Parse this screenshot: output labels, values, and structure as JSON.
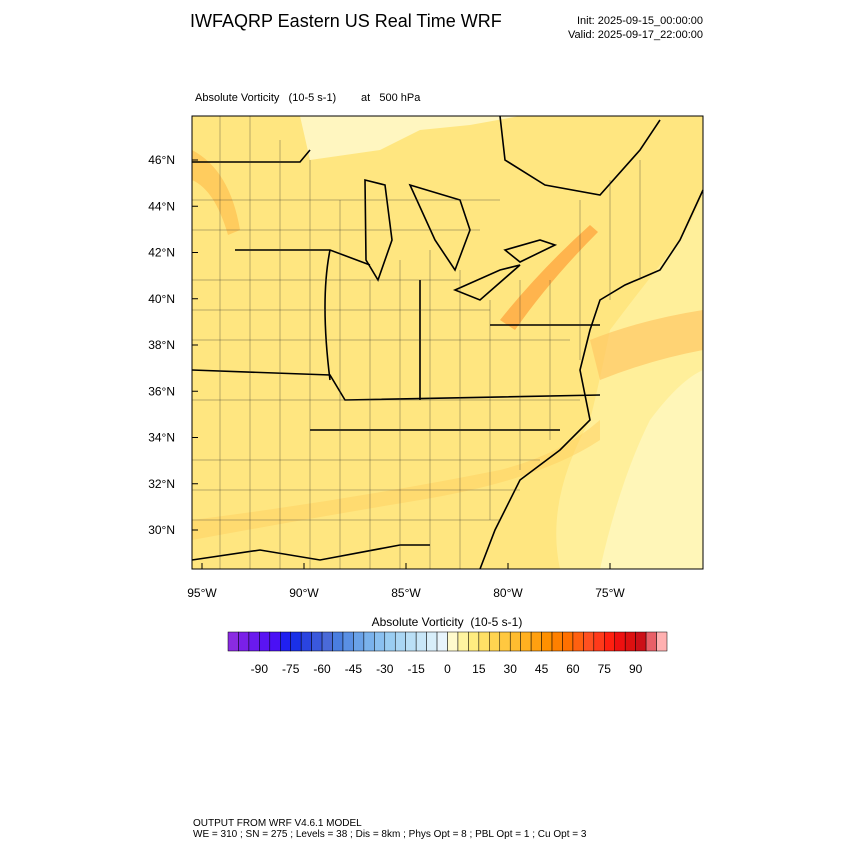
{
  "header": {
    "title": "IWFAQRP Eastern US Real Time WRF",
    "init": "Init: 2025-09-15_00:00:00",
    "valid": "Valid: 2025-09-17_22:00:00"
  },
  "field": {
    "name": "Absolute Vorticity   (10-5 s-1)",
    "level": "at   500 hPa"
  },
  "map": {
    "lat_labels": [
      "46°N",
      "44°N",
      "42°N",
      "40°N",
      "38°N",
      "36°N",
      "34°N",
      "32°N",
      "30°N"
    ],
    "lon_labels": [
      "95°W",
      "90°W",
      "85°W",
      "80°W",
      "75°W"
    ]
  },
  "colorbar": {
    "title": "Absolute Vorticity  (10-5 s-1)",
    "ticks": [
      -90,
      -75,
      -60,
      -45,
      -30,
      -15,
      0,
      15,
      30,
      45,
      60,
      75,
      90
    ],
    "colors": [
      "#8a2be2",
      "#7a20e8",
      "#6a1aee",
      "#5a14f2",
      "#4a10f5",
      "#2020f0",
      "#1a30e8",
      "#2a44e0",
      "#3a58dc",
      "#4a6ad8",
      "#4a7ee0",
      "#5a90e4",
      "#6aa2e8",
      "#7ab2ec",
      "#8ac0f0",
      "#9acdf2",
      "#aad6f4",
      "#badff6",
      "#c8e6f8",
      "#d8eefa",
      "#e8f4fc",
      "#fffacd",
      "#fff4a0",
      "#ffec80",
      "#ffe066",
      "#ffd450",
      "#ffc840",
      "#ffbc30",
      "#ffb020",
      "#ffa010",
      "#ff9000",
      "#ff8000",
      "#ff7000",
      "#ff6010",
      "#ff5020",
      "#ff3a1a",
      "#ff2010",
      "#ee1010",
      "#dd1010",
      "#cc1018",
      "#e86068",
      "#ffb0b0"
    ]
  },
  "footer": {
    "lines": [
      "OUTPUT FROM WRF V4.6.1 MODEL",
      "WE = 310 ; SN = 275 ; Levels = 38 ; Dis = 8km ; Phys Opt = 8 ; PBL Opt = 1 ; Cu Opt = 3"
    ]
  }
}
